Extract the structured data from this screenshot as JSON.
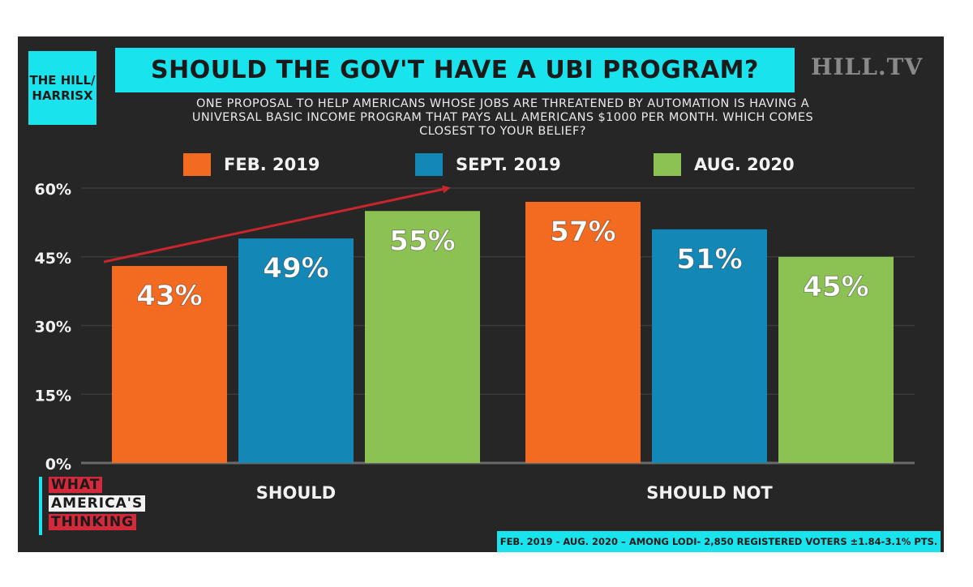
{
  "brand": {
    "line1": "THE HILL/",
    "line2": "HARRISX"
  },
  "logo": "HILL.TV",
  "footer": {
    "brand_words": [
      "WHAT",
      "AMERICA'S",
      "THINKING"
    ],
    "source": "FEB. 2019 - AUG. 2020 – AMONG LODI- 2,850 REGISTERED VOTERS ±1.84-3.1% PTS."
  },
  "colors": {
    "panel": "#262626",
    "accent": "#19e3ec",
    "feb_2019": "#f26b21",
    "sept_2019": "#1388b6",
    "aug_2020": "#8cc153",
    "arrow": "#c8252d",
    "brand_red": "#d22a3a"
  },
  "chart_data": {
    "type": "bar",
    "title": "SHOULD THE GOV'T HAVE A UBI PROGRAM?",
    "subtitle_lines": [
      "ONE PROPOSAL TO HELP AMERICANS WHOSE JOBS ARE THREATENED BY AUTOMATION IS HAVING A",
      "UNIVERSAL BASIC INCOME PROGRAM THAT PAYS ALL AMERICANS $1000 PER MONTH. WHICH COMES",
      "CLOSEST TO YOUR BELIEF?"
    ],
    "categories": [
      "SHOULD",
      "SHOULD NOT"
    ],
    "series": [
      {
        "name": "FEB. 2019",
        "values": [
          43,
          57
        ],
        "labels": [
          "43%",
          "57%"
        ]
      },
      {
        "name": "SEPT. 2019",
        "values": [
          49,
          51
        ],
        "labels": [
          "49%",
          "51%"
        ]
      },
      {
        "name": "AUG. 2020",
        "values": [
          55,
          45
        ],
        "labels": [
          "55%",
          "45%"
        ]
      }
    ],
    "ylim": [
      0,
      60
    ],
    "yticks": [
      0,
      15,
      30,
      45,
      60
    ],
    "ytick_labels": [
      "0%",
      "15%",
      "30%",
      "45%",
      "60%"
    ],
    "grid": true,
    "legend_placement": "top",
    "annotation": "upward trend arrow over SHOULD bars"
  }
}
